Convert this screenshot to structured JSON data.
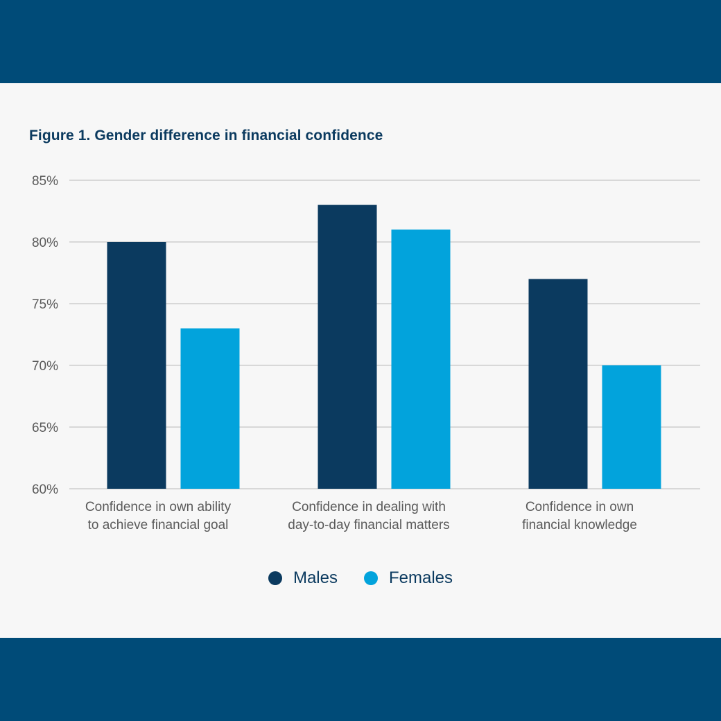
{
  "colors": {
    "band": "#004b78",
    "title": "#0b3a5f",
    "males": "#0b3a5f",
    "females": "#02a3dc",
    "grid": "#b9b9b9",
    "tick_text": "#5a5a5a"
  },
  "chart_data": {
    "type": "bar",
    "title": "Figure 1. Gender difference in financial confidence",
    "categories": [
      [
        "Confidence in own ability",
        "to achieve financial goal"
      ],
      [
        "Confidence in dealing with",
        "day-to-day financial matters"
      ],
      [
        "Confidence in own",
        "financial knowledge"
      ]
    ],
    "series": [
      {
        "name": "Males",
        "values": [
          80,
          83,
          77
        ]
      },
      {
        "name": "Females",
        "values": [
          73,
          81,
          70
        ]
      }
    ],
    "ylim": [
      60,
      85
    ],
    "yticks": [
      60,
      65,
      70,
      75,
      80,
      85
    ],
    "ytick_labels": [
      "60%",
      "65%",
      "70%",
      "75%",
      "80%",
      "85%"
    ],
    "xlabel": "",
    "ylabel": "",
    "grid": true,
    "legend_position": "bottom"
  }
}
